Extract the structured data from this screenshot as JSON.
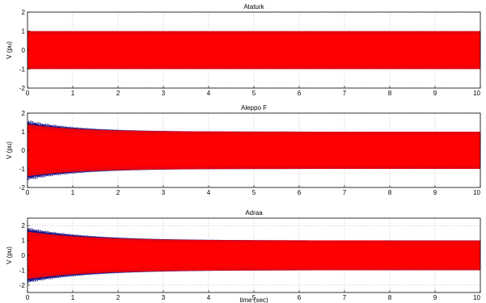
{
  "chart_data": [
    {
      "type": "line",
      "title": "Ataturk",
      "xlabel": "",
      "ylabel": "V (pu)",
      "xlim": [
        0,
        10
      ],
      "ylim": [
        -2,
        2
      ],
      "xticks": [
        "0",
        "1",
        "2",
        "3",
        "4",
        "5",
        "6",
        "7",
        "8",
        "9",
        "10"
      ],
      "yticks": [
        "2",
        "1",
        "0",
        "-1",
        "-2"
      ],
      "grid": true,
      "waveform": {
        "steady_amplitude": 1.0,
        "initial_amplitude": 1.0,
        "settle_time": 0
      },
      "series": [
        {
          "color": "#1a1a8c",
          "amplitude_start": 1.0,
          "amplitude_end": 1.0
        },
        {
          "color": "#ff0000",
          "amplitude_start": 1.0,
          "amplitude_end": 1.0
        }
      ]
    },
    {
      "type": "line",
      "title": "Aleppo F",
      "xlabel": "",
      "ylabel": "V (pu)",
      "xlim": [
        0,
        10
      ],
      "ylim": [
        -2,
        2
      ],
      "xticks": [
        "0",
        "1",
        "2",
        "3",
        "4",
        "5",
        "6",
        "7",
        "8",
        "9",
        "10"
      ],
      "yticks": [
        "2",
        "1",
        "0",
        "-1",
        "-2"
      ],
      "grid": true,
      "waveform": {
        "steady_amplitude": 1.0,
        "initial_amplitude": 1.55,
        "settle_time": 2.5
      },
      "series": [
        {
          "color": "#1a1a8c",
          "amplitude_start": 1.55,
          "amplitude_end": 1.0
        },
        {
          "color": "#ff0000",
          "amplitude_start": 1.4,
          "amplitude_end": 1.0
        }
      ]
    },
    {
      "type": "line",
      "title": "Adraa",
      "xlabel": "time (sec)",
      "ylabel": "V (pu)",
      "xlim": [
        0,
        10
      ],
      "ylim": [
        -2.5,
        2.5
      ],
      "xticks": [
        "0",
        "1",
        "2",
        "3",
        "4",
        "5",
        "6",
        "7",
        "8",
        "9",
        "10"
      ],
      "yticks": [
        "2",
        "1",
        "0",
        "-1",
        "-2"
      ],
      "grid": true,
      "waveform": {
        "steady_amplitude": 1.0,
        "initial_amplitude": 1.8,
        "settle_time": 3
      },
      "series": [
        {
          "color": "#1a1a8c",
          "amplitude_start": 1.8,
          "amplitude_end": 1.0
        },
        {
          "color": "#ff0000",
          "amplitude_start": 1.6,
          "amplitude_end": 1.0
        }
      ]
    }
  ],
  "colors": {
    "envelope": "#1a1a8c",
    "signal": "#ff0000",
    "grid": "#a8a8a8",
    "axis": "#000000"
  }
}
